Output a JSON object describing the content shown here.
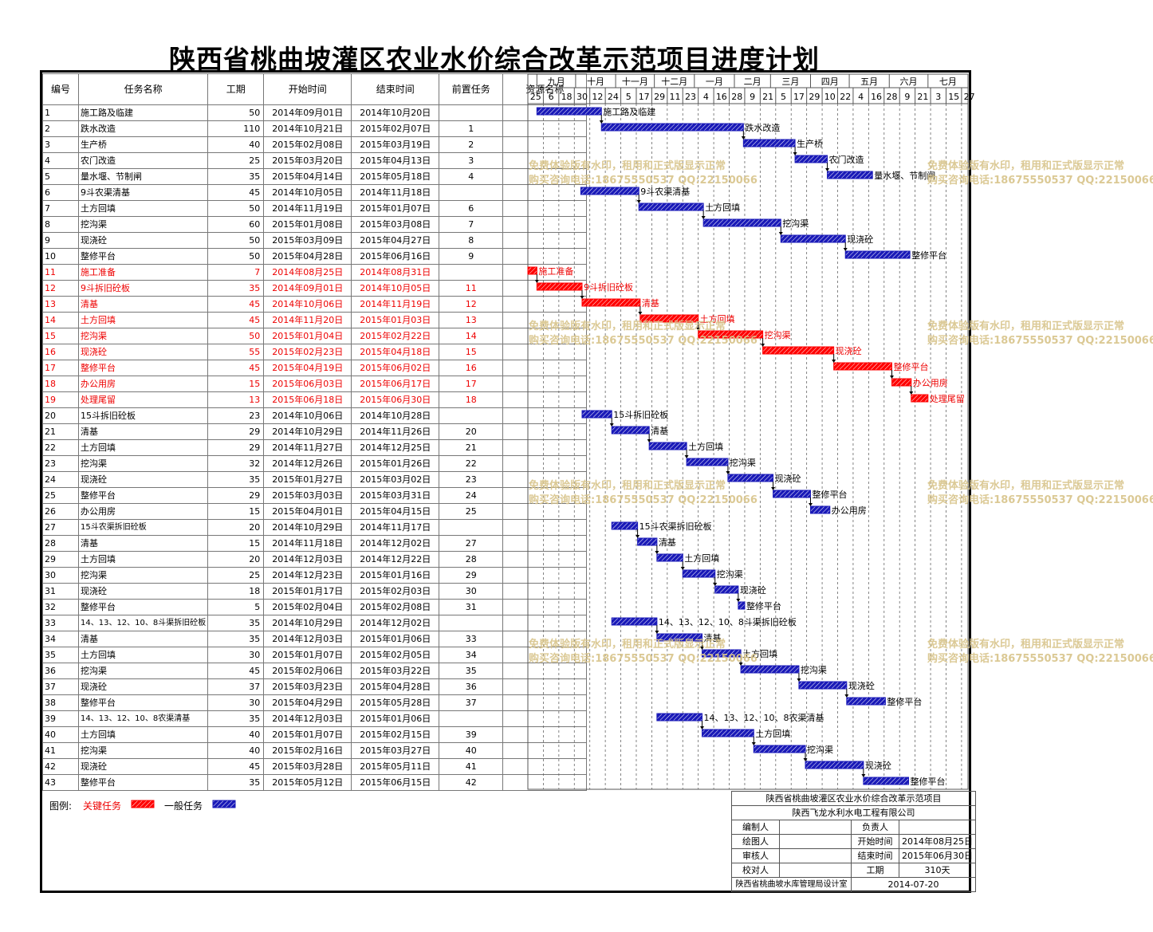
{
  "title": "陕西省桃曲坡灌区农业水价综合改革示范项目进度计划",
  "table_headers": {
    "id": "编号",
    "name": "任务名称",
    "duration": "工期",
    "start": "开始时间",
    "end": "结束时间",
    "pred": "前置任务",
    "resource": "资源名称"
  },
  "months": [
    "九月",
    "十月",
    "十一月",
    "十二月",
    "一月",
    "二月",
    "三月",
    "四月",
    "五月",
    "六月",
    "七月"
  ],
  "ticks": [
    "25",
    "6",
    "18",
    "30",
    "12",
    "24",
    "5",
    "17",
    "29",
    "11",
    "23",
    "4",
    "16",
    "28",
    "9",
    "21",
    "5",
    "17",
    "29",
    "10",
    "22",
    "4",
    "16",
    "28",
    "9",
    "21",
    "3",
    "15",
    "27"
  ],
  "legend": {
    "label": "图例:",
    "critical": "关键任务",
    "normal": "一般任务"
  },
  "colors": {
    "critical": "#ff0000",
    "normal": "#1a1ab8"
  },
  "watermark": {
    "line1": "免费体验版有水印，租用和正式版显示正常",
    "line2": "购买咨询电话:18675550537 QQ:22150066"
  },
  "info_block": {
    "project": "陕西省桃曲坡灌区农业水价综合改革示范项目",
    "company": "陕西飞龙水利水电工程有限公司",
    "editor": "编制人",
    "owner": "负责人",
    "drawer": "绘图人",
    "start_label": "开始时间",
    "start_value": "2014年08月25日",
    "reviewer": "审核人",
    "end_label": "结束时间",
    "end_value": "2015年06月30日",
    "checker": "校对人",
    "dur_label": "工期",
    "dur_value": "310天",
    "org": "陕西省桃曲坡水库管理局设计室",
    "date": "2014-07-20"
  },
  "chart_data": {
    "type": "gantt",
    "x_start": "2014-08-25",
    "x_end": "2015-07-31",
    "tasks": [
      {
        "id": "1",
        "name": "施工路及临建",
        "duration": "50",
        "start": "2014年09月01日",
        "end": "2014年10月20日",
        "pred": "",
        "critical": false,
        "s": "2014-09-01",
        "e": "2014-10-20"
      },
      {
        "id": "2",
        "name": "跌水改造",
        "duration": "110",
        "start": "2014年10月21日",
        "end": "2015年02月07日",
        "pred": "1",
        "critical": false,
        "s": "2014-10-21",
        "e": "2015-02-07"
      },
      {
        "id": "3",
        "name": "生产桥",
        "duration": "40",
        "start": "2015年02月08日",
        "end": "2015年03月19日",
        "pred": "2",
        "critical": false,
        "s": "2015-02-08",
        "e": "2015-03-19"
      },
      {
        "id": "4",
        "name": "农门改造",
        "duration": "25",
        "start": "2015年03月20日",
        "end": "2015年04月13日",
        "pred": "3",
        "critical": false,
        "s": "2015-03-20",
        "e": "2015-04-13"
      },
      {
        "id": "5",
        "name": "量水堰、节制闸",
        "duration": "35",
        "start": "2015年04月14日",
        "end": "2015年05月18日",
        "pred": "4",
        "critical": false,
        "s": "2015-04-14",
        "e": "2015-05-18"
      },
      {
        "id": "6",
        "name": "9斗农渠清基",
        "duration": "45",
        "start": "2014年10月05日",
        "end": "2014年11月18日",
        "pred": "",
        "critical": false,
        "s": "2014-10-05",
        "e": "2014-11-18"
      },
      {
        "id": "7",
        "name": "土方回填",
        "duration": "50",
        "start": "2014年11月19日",
        "end": "2015年01月07日",
        "pred": "6",
        "critical": false,
        "s": "2014-11-19",
        "e": "2015-01-07"
      },
      {
        "id": "8",
        "name": "挖沟渠",
        "duration": "60",
        "start": "2015年01月08日",
        "end": "2015年03月08日",
        "pred": "7",
        "critical": false,
        "s": "2015-01-08",
        "e": "2015-03-08"
      },
      {
        "id": "9",
        "name": "现浇砼",
        "duration": "50",
        "start": "2015年03月09日",
        "end": "2015年04月27日",
        "pred": "8",
        "critical": false,
        "s": "2015-03-09",
        "e": "2015-04-27"
      },
      {
        "id": "10",
        "name": "整修平台",
        "duration": "50",
        "start": "2015年04月28日",
        "end": "2015年06月16日",
        "pred": "9",
        "critical": false,
        "s": "2015-04-28",
        "e": "2015-06-16"
      },
      {
        "id": "11",
        "name": "施工准备",
        "duration": "7",
        "start": "2014年08月25日",
        "end": "2014年08月31日",
        "pred": "",
        "critical": true,
        "s": "2014-08-25",
        "e": "2014-08-31"
      },
      {
        "id": "12",
        "name": "9斗拆旧砼板",
        "duration": "35",
        "start": "2014年09月01日",
        "end": "2014年10月05日",
        "pred": "11",
        "critical": true,
        "s": "2014-09-01",
        "e": "2014-10-05"
      },
      {
        "id": "13",
        "name": "清基",
        "duration": "45",
        "start": "2014年10月06日",
        "end": "2014年11月19日",
        "pred": "12",
        "critical": true,
        "s": "2014-10-06",
        "e": "2014-11-19"
      },
      {
        "id": "14",
        "name": "土方回填",
        "duration": "45",
        "start": "2014年11月20日",
        "end": "2015年01月03日",
        "pred": "13",
        "critical": true,
        "s": "2014-11-20",
        "e": "2015-01-03"
      },
      {
        "id": "15",
        "name": "挖沟渠",
        "duration": "50",
        "start": "2015年01月04日",
        "end": "2015年02月22日",
        "pred": "14",
        "critical": true,
        "s": "2015-01-04",
        "e": "2015-02-22"
      },
      {
        "id": "16",
        "name": "现浇砼",
        "duration": "55",
        "start": "2015年02月23日",
        "end": "2015年04月18日",
        "pred": "15",
        "critical": true,
        "s": "2015-02-23",
        "e": "2015-04-18"
      },
      {
        "id": "17",
        "name": "整修平台",
        "duration": "45",
        "start": "2015年04月19日",
        "end": "2015年06月02日",
        "pred": "16",
        "critical": true,
        "s": "2015-04-19",
        "e": "2015-06-02"
      },
      {
        "id": "18",
        "name": "办公用房",
        "duration": "15",
        "start": "2015年06月03日",
        "end": "2015年06月17日",
        "pred": "17",
        "critical": true,
        "s": "2015-06-03",
        "e": "2015-06-17"
      },
      {
        "id": "19",
        "name": "处理尾留",
        "duration": "13",
        "start": "2015年06月18日",
        "end": "2015年06月30日",
        "pred": "18",
        "critical": true,
        "s": "2015-06-18",
        "e": "2015-06-30"
      },
      {
        "id": "20",
        "name": "15斗拆旧砼板",
        "duration": "23",
        "start": "2014年10月06日",
        "end": "2014年10月28日",
        "pred": "",
        "critical": false,
        "s": "2014-10-06",
        "e": "2014-10-28"
      },
      {
        "id": "21",
        "name": "清基",
        "duration": "29",
        "start": "2014年10月29日",
        "end": "2014年11月26日",
        "pred": "20",
        "critical": false,
        "s": "2014-10-29",
        "e": "2014-11-26"
      },
      {
        "id": "22",
        "name": "土方回填",
        "duration": "29",
        "start": "2014年11月27日",
        "end": "2014年12月25日",
        "pred": "21",
        "critical": false,
        "s": "2014-11-27",
        "e": "2014-12-25"
      },
      {
        "id": "23",
        "name": "挖沟渠",
        "duration": "32",
        "start": "2014年12月26日",
        "end": "2015年01月26日",
        "pred": "22",
        "critical": false,
        "s": "2014-12-26",
        "e": "2015-01-26"
      },
      {
        "id": "24",
        "name": "现浇砼",
        "duration": "35",
        "start": "2015年01月27日",
        "end": "2015年03月02日",
        "pred": "23",
        "critical": false,
        "s": "2015-01-27",
        "e": "2015-03-02"
      },
      {
        "id": "25",
        "name": "整修平台",
        "duration": "29",
        "start": "2015年03月03日",
        "end": "2015年03月31日",
        "pred": "24",
        "critical": false,
        "s": "2015-03-03",
        "e": "2015-03-31"
      },
      {
        "id": "26",
        "name": "办公用房",
        "duration": "15",
        "start": "2015年04月01日",
        "end": "2015年04月15日",
        "pred": "25",
        "critical": false,
        "s": "2015-04-01",
        "e": "2015-04-15"
      },
      {
        "id": "27",
        "name": "15斗农渠拆旧砼板",
        "duration": "20",
        "start": "2014年10月29日",
        "end": "2014年11月17日",
        "pred": "",
        "critical": false,
        "s": "2014-10-29",
        "e": "2014-11-17"
      },
      {
        "id": "28",
        "name": "清基",
        "duration": "15",
        "start": "2014年11月18日",
        "end": "2014年12月02日",
        "pred": "27",
        "critical": false,
        "s": "2014-11-18",
        "e": "2014-12-02"
      },
      {
        "id": "29",
        "name": "土方回填",
        "duration": "20",
        "start": "2014年12月03日",
        "end": "2014年12月22日",
        "pred": "28",
        "critical": false,
        "s": "2014-12-03",
        "e": "2014-12-22"
      },
      {
        "id": "30",
        "name": "挖沟渠",
        "duration": "25",
        "start": "2014年12月23日",
        "end": "2015年01月16日",
        "pred": "29",
        "critical": false,
        "s": "2014-12-23",
        "e": "2015-01-16"
      },
      {
        "id": "31",
        "name": "现浇砼",
        "duration": "18",
        "start": "2015年01月17日",
        "end": "2015年02月03日",
        "pred": "30",
        "critical": false,
        "s": "2015-01-17",
        "e": "2015-02-03"
      },
      {
        "id": "32",
        "name": "整修平台",
        "duration": "5",
        "start": "2015年02月04日",
        "end": "2015年02月08日",
        "pred": "31",
        "critical": false,
        "s": "2015-02-04",
        "e": "2015-02-08"
      },
      {
        "id": "33",
        "name": "14、13、12、10、8斗渠拆旧砼板",
        "duration": "35",
        "start": "2014年10月29日",
        "end": "2014年12月02日",
        "pred": "",
        "critical": false,
        "s": "2014-10-29",
        "e": "2014-12-02"
      },
      {
        "id": "34",
        "name": "清基",
        "duration": "35",
        "start": "2014年12月03日",
        "end": "2015年01月06日",
        "pred": "33",
        "critical": false,
        "s": "2014-12-03",
        "e": "2015-01-06"
      },
      {
        "id": "35",
        "name": "土方回填",
        "duration": "30",
        "start": "2015年01月07日",
        "end": "2015年02月05日",
        "pred": "34",
        "critical": false,
        "s": "2015-01-07",
        "e": "2015-02-05"
      },
      {
        "id": "36",
        "name": "挖沟渠",
        "duration": "45",
        "start": "2015年02月06日",
        "end": "2015年03月22日",
        "pred": "35",
        "critical": false,
        "s": "2015-02-06",
        "e": "2015-03-22"
      },
      {
        "id": "37",
        "name": "现浇砼",
        "duration": "37",
        "start": "2015年03月23日",
        "end": "2015年04月28日",
        "pred": "36",
        "critical": false,
        "s": "2015-03-23",
        "e": "2015-04-28"
      },
      {
        "id": "38",
        "name": "整修平台",
        "duration": "30",
        "start": "2015年04月29日",
        "end": "2015年05月28日",
        "pred": "37",
        "critical": false,
        "s": "2015-04-29",
        "e": "2015-05-28"
      },
      {
        "id": "39",
        "name": "14、13、12、10、8农渠清基",
        "duration": "35",
        "start": "2014年12月03日",
        "end": "2015年01月06日",
        "pred": "",
        "critical": false,
        "s": "2014-12-03",
        "e": "2015-01-06"
      },
      {
        "id": "40",
        "name": "土方回填",
        "duration": "40",
        "start": "2015年01月07日",
        "end": "2015年02月15日",
        "pred": "39",
        "critical": false,
        "s": "2015-01-07",
        "e": "2015-02-15"
      },
      {
        "id": "41",
        "name": "挖沟渠",
        "duration": "40",
        "start": "2015年02月16日",
        "end": "2015年03月27日",
        "pred": "40",
        "critical": false,
        "s": "2015-02-16",
        "e": "2015-03-27"
      },
      {
        "id": "42",
        "name": "现浇砼",
        "duration": "45",
        "start": "2015年03月28日",
        "end": "2015年05月11日",
        "pred": "41",
        "critical": false,
        "s": "2015-03-28",
        "e": "2015-05-11"
      },
      {
        "id": "43",
        "name": "整修平台",
        "duration": "35",
        "start": "2015年05月12日",
        "end": "2015年06月15日",
        "pred": "42",
        "critical": false,
        "s": "2015-05-12",
        "e": "2015-06-15"
      }
    ]
  }
}
